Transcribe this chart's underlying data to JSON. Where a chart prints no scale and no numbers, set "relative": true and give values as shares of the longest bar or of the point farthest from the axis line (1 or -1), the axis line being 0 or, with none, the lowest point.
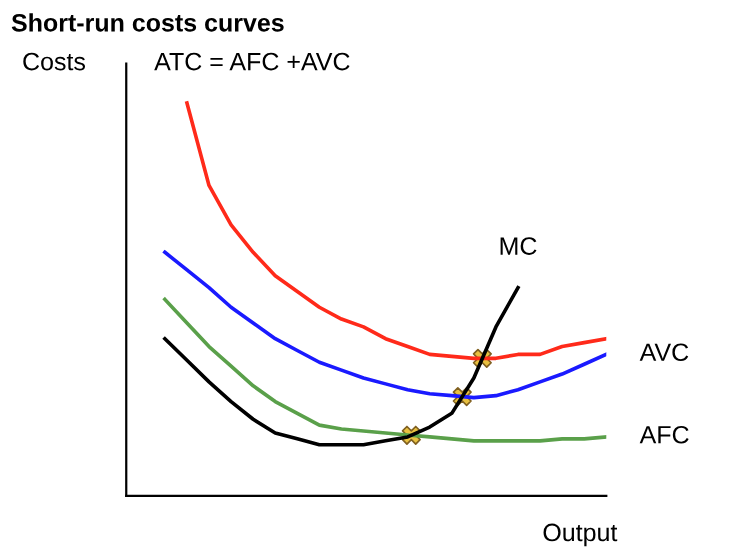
{
  "chart_data": {
    "type": "line",
    "title": "Short-run costs curves",
    "xlabel": "Output",
    "ylabel": "Costs",
    "relative": true,
    "annotations": [
      "ATC = AFC +AVC"
    ],
    "categories": [
      null,
      null,
      null,
      null,
      null,
      null,
      null,
      null,
      null,
      null,
      null,
      null,
      null,
      null,
      null,
      null,
      null,
      null,
      null,
      null,
      null
    ],
    "series": [
      {
        "color": "#ff2a1a",
        "values": [
          null,
          1.0,
          0.79,
          0.69,
          0.62,
          0.56,
          0.52,
          0.48,
          0.45,
          0.43,
          0.4,
          0.38,
          0.36,
          0.355,
          0.35,
          0.35,
          0.36,
          0.36,
          0.38,
          0.39,
          0.4
        ]
      },
      {
        "name": "AVC",
        "color": "#1a1aff",
        "values": [
          0.62,
          0.575,
          0.53,
          0.48,
          0.44,
          0.4,
          0.37,
          0.34,
          0.32,
          0.3,
          0.285,
          0.27,
          0.26,
          0.255,
          0.25,
          0.255,
          0.27,
          0.29,
          0.31,
          0.335,
          0.36
        ]
      },
      {
        "name": "AFC",
        "color": "#5aa04a",
        "values": [
          0.5,
          0.44,
          0.38,
          0.33,
          0.28,
          0.24,
          0.21,
          0.18,
          0.17,
          0.165,
          0.16,
          0.155,
          0.15,
          0.145,
          0.14,
          0.14,
          0.14,
          0.14,
          0.145,
          0.145,
          0.15
        ]
      },
      {
        "name": "MC",
        "color": "#000000",
        "values": [
          0.4,
          0.345,
          0.29,
          0.24,
          0.195,
          0.16,
          0.145,
          0.13,
          0.13,
          0.13,
          0.14,
          0.15,
          0.175,
          0.21,
          0.3,
          0.43,
          0.53,
          null,
          null,
          null,
          null
        ]
      }
    ]
  }
}
